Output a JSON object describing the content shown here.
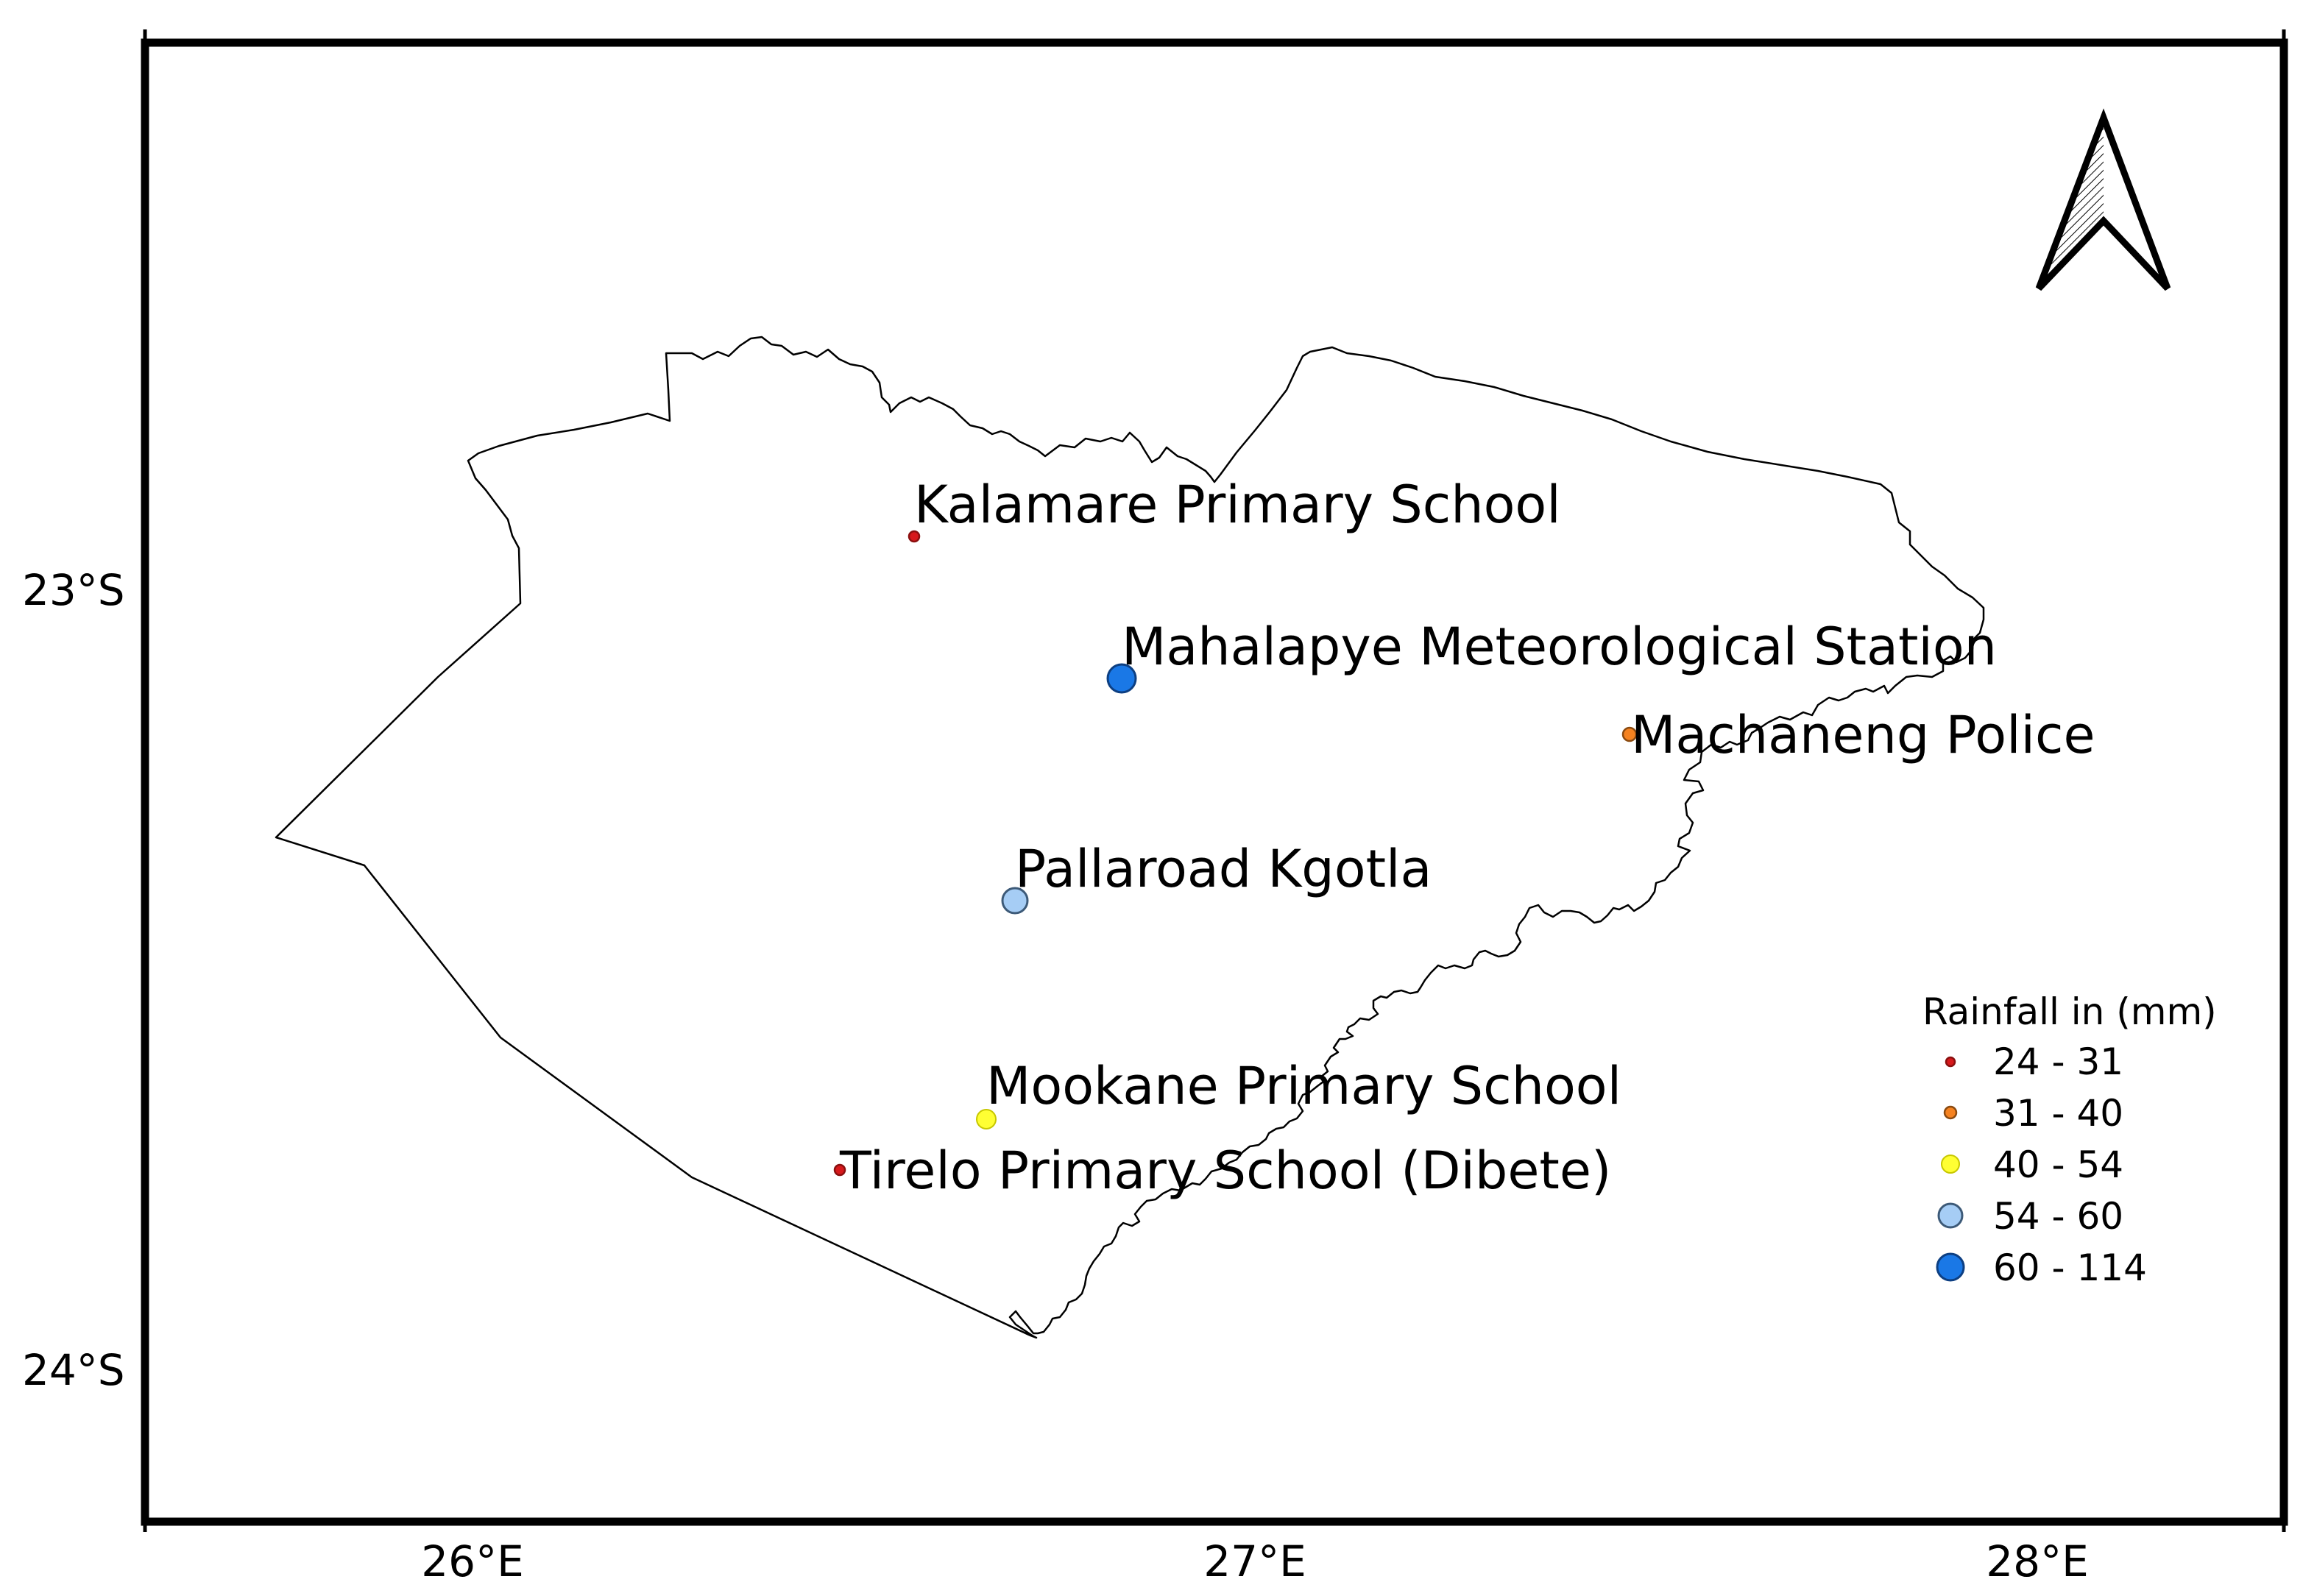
{
  "map": {
    "axis": {
      "lat_labels": [
        "23°S",
        "24°S"
      ],
      "lon_labels": [
        "26°E",
        "27°E",
        "28°E"
      ]
    },
    "stations": [
      {
        "id": "kalamare",
        "name": "Kalamare Primary School",
        "rainfall_class": 0
      },
      {
        "id": "mahalapye",
        "name": "Mahalapye Meteorological Station",
        "rainfall_class": 4
      },
      {
        "id": "machaneng",
        "name": "Machaneng Police",
        "rainfall_class": 1
      },
      {
        "id": "pallaroad",
        "name": "Pallaroad Kgotla",
        "rainfall_class": 3
      },
      {
        "id": "mookane",
        "name": "Mookane Primary School",
        "rainfall_class": 2
      },
      {
        "id": "tirelo",
        "name": "Tirelo Primary School (Dibete)",
        "rainfall_class": 0
      }
    ],
    "legend": {
      "title": "Rainfall in (mm)",
      "items": [
        {
          "label": "24 - 31",
          "color": "#d7191c"
        },
        {
          "label": "31 - 40",
          "color": "#f58220"
        },
        {
          "label": "40 - 54",
          "color": "#ffff33"
        },
        {
          "label": "54 - 60",
          "color": "#a6cdf5"
        },
        {
          "label": "60 - 114",
          "color": "#1a78e6"
        }
      ]
    },
    "north_arrow": {
      "icon": "north-arrow-icon"
    }
  }
}
